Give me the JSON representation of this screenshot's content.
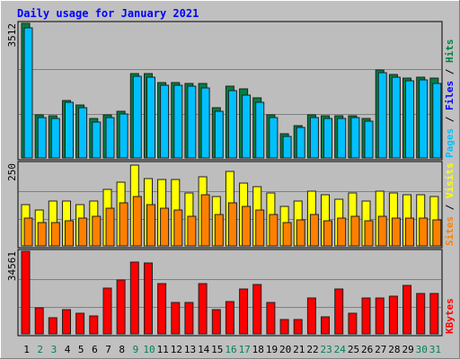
{
  "chart_data": {
    "title": "Daily usage for January 2021",
    "days": [
      "1",
      "2",
      "3",
      "4",
      "5",
      "6",
      "7",
      "8",
      "9",
      "10",
      "11",
      "12",
      "13",
      "14",
      "15",
      "16",
      "17",
      "18",
      "19",
      "20",
      "21",
      "22",
      "23",
      "24",
      "25",
      "26",
      "27",
      "28",
      "29",
      "30",
      "31"
    ],
    "weekend_days": [
      2,
      3,
      9,
      10,
      16,
      17,
      23,
      24,
      30,
      31
    ],
    "panels": [
      {
        "type": "bar",
        "y_max_label": "3512",
        "ylim": [
          0,
          3512
        ],
        "series": [
          {
            "name": "Hits",
            "color": "#008040",
            "values": [
              3512,
              1130,
              1110,
              1500,
              1390,
              1030,
              1130,
              1210,
              2210,
              2200,
              1970,
              1960,
              1950,
              1940,
              1300,
              1870,
              1810,
              1560,
              1130,
              640,
              850,
              1130,
              1110,
              1100,
              1110,
              1040,
              2300,
              2180,
              2090,
              2100,
              2090
            ]
          },
          {
            "name": "Files",
            "color": "#0000ff",
            "values": [
              1,
              1,
              1,
              1,
              1,
              1,
              1,
              1,
              1,
              1,
              1,
              1,
              1,
              1,
              1,
              1,
              1,
              1,
              1,
              1,
              1,
              1,
              1,
              1,
              1,
              1,
              1,
              1,
              1,
              1,
              1
            ]
          },
          {
            "name": "Pages",
            "color": "#00c0ff",
            "values": [
              3400,
              1060,
              1040,
              1440,
              1300,
              940,
              1050,
              1140,
              2130,
              2110,
              1900,
              1900,
              1880,
              1830,
              1210,
              1760,
              1650,
              1460,
              1060,
              570,
              790,
              1060,
              1040,
              1020,
              1060,
              950,
              2220,
              2110,
              2020,
              2030,
              1950
            ]
          }
        ]
      },
      {
        "type": "bar",
        "y_max_label": "250",
        "ylim": [
          0,
          250
        ],
        "series": [
          {
            "name": "Visits",
            "color": "#ffff00",
            "values": [
              125,
              110,
              135,
              135,
              125,
              135,
              170,
              192,
              245,
              205,
              200,
              200,
              160,
              210,
              150,
              225,
              190,
              180,
              160,
              120,
              135,
              165,
              155,
              140,
              160,
              135,
              165,
              160,
              155,
              155,
              150
            ]
          },
          {
            "name": "Sites",
            "color": "#ff8000",
            "values": [
              85,
              70,
              70,
              75,
              85,
              90,
              115,
              130,
              150,
              125,
              115,
              110,
              90,
              155,
              95,
              130,
              120,
              110,
              95,
              70,
              80,
              95,
              75,
              85,
              90,
              75,
              90,
              85,
              85,
              85,
              80
            ]
          }
        ]
      },
      {
        "type": "bar",
        "y_max_label": "34561",
        "ylim": [
          0,
          34561
        ],
        "series": [
          {
            "name": "KBytes",
            "color": "#ff0000",
            "values": [
              34561,
              11050,
              6820,
              10110,
              8700,
              7490,
              19250,
              22610,
              30210,
              29500,
              21200,
              13280,
              13210,
              21140,
              10110,
              13520,
              18630,
              20530,
              13070,
              5950,
              5950,
              15180,
              6990,
              18970,
              8700,
              14860,
              15010,
              15690,
              20330,
              16770,
              16770
            ]
          }
        ]
      }
    ],
    "legend_top": [
      "Pages",
      "/",
      "Files",
      "/",
      "Hits"
    ],
    "legend_mid": [
      "Sites",
      "/",
      "Visits"
    ],
    "legend_bot": [
      "KBytes"
    ]
  }
}
